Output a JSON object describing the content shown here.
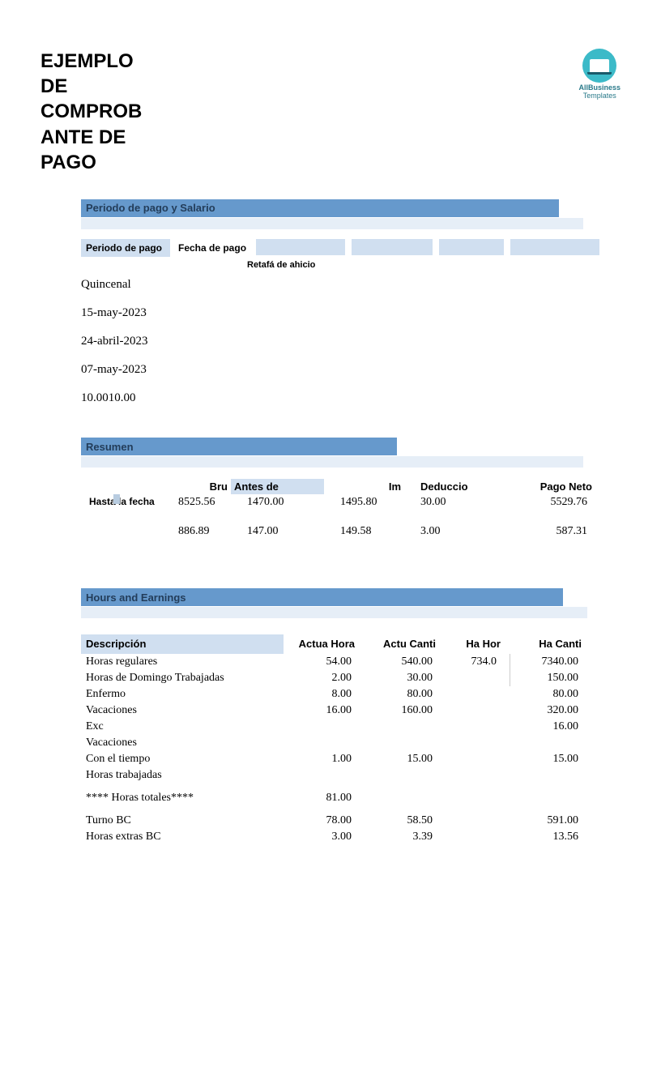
{
  "logo": {
    "line1": "AllBusiness",
    "line2": "Templates"
  },
  "title": "EJEMPLO DE COMPROB ANTE DE PAGO",
  "section1": {
    "header": "Periodo de pago y Salario",
    "col_periodo": "Periodo de pago",
    "col_fecha": "Fecha de pago",
    "sub_label": "Retafá de ahicio",
    "values": {
      "frequency": "Quincenal",
      "pay_date": "15-may-2023",
      "start_date": "24-abril-2023",
      "end_date": "07-may-2023",
      "hours": "10.0010.00"
    }
  },
  "section2": {
    "header": "Resumen",
    "cols": {
      "c1": "",
      "c2": "Bru",
      "c3": "Antes de",
      "c4": "Im",
      "c5": "Deduccio",
      "c6": "Pago Neto"
    },
    "row1_label": "Hasta la fecha",
    "row1": {
      "c2": "8525.56",
      "c3": "1470.00",
      "c4": "1495.80",
      "c5": "30.00",
      "c6": "5529.76"
    },
    "row2": {
      "c2": "886.89",
      "c3": "147.00",
      "c4": "149.58",
      "c5": "3.00",
      "c6": "587.31"
    }
  },
  "section3": {
    "header": "Hours and Earnings",
    "cols": {
      "desc": "Descripción",
      "c2": "Actua Hora",
      "c3": "Actu Canti",
      "c4": "Ha Hor",
      "c5": "Ha Canti"
    },
    "rows": [
      {
        "desc": "Horas regulares",
        "c2": "54.00",
        "c3": "540.00",
        "c4": "734.0",
        "c5": "7340.00"
      },
      {
        "desc": "Horas de Domingo Trabajadas",
        "c2": "2.00",
        "c3": "30.00",
        "c4": "",
        "c5": "150.00"
      },
      {
        "desc": "Enfermo",
        "c2": "8.00",
        "c3": "80.00",
        "c4": "",
        "c5": "80.00"
      },
      {
        "desc": "Vacaciones",
        "c2": "16.00",
        "c3": "160.00",
        "c4": "",
        "c5": "320.00"
      },
      {
        "desc": "Exc",
        "c2": "",
        "c3": "",
        "c4": "",
        "c5": "16.00"
      },
      {
        "desc": "Vacaciones",
        "c2": "",
        "c3": "",
        "c4": "",
        "c5": ""
      },
      {
        "desc": "Con el tiempo",
        "c2": "1.00",
        "c3": "15.00",
        "c4": "",
        "c5": "15.00"
      },
      {
        "desc": "Horas trabajadas",
        "c2": "",
        "c3": "",
        "c4": "",
        "c5": ""
      }
    ],
    "totals": {
      "desc": "**** Horas totales****",
      "c2": "81.00",
      "c3": "",
      "c4": "",
      "c5": ""
    },
    "rows2": [
      {
        "desc": "Turno BC",
        "c2": "78.00",
        "c3": "58.50",
        "c4": "",
        "c5": "591.00"
      },
      {
        "desc": "Horas extras BC",
        "c2": "3.00",
        "c3": "3.39",
        "c4": "",
        "c5": "13.56"
      }
    ]
  },
  "colors": {
    "header_bar": "#6699cc",
    "light_fill": "#d0dff0",
    "strip": "#e6eef7"
  }
}
